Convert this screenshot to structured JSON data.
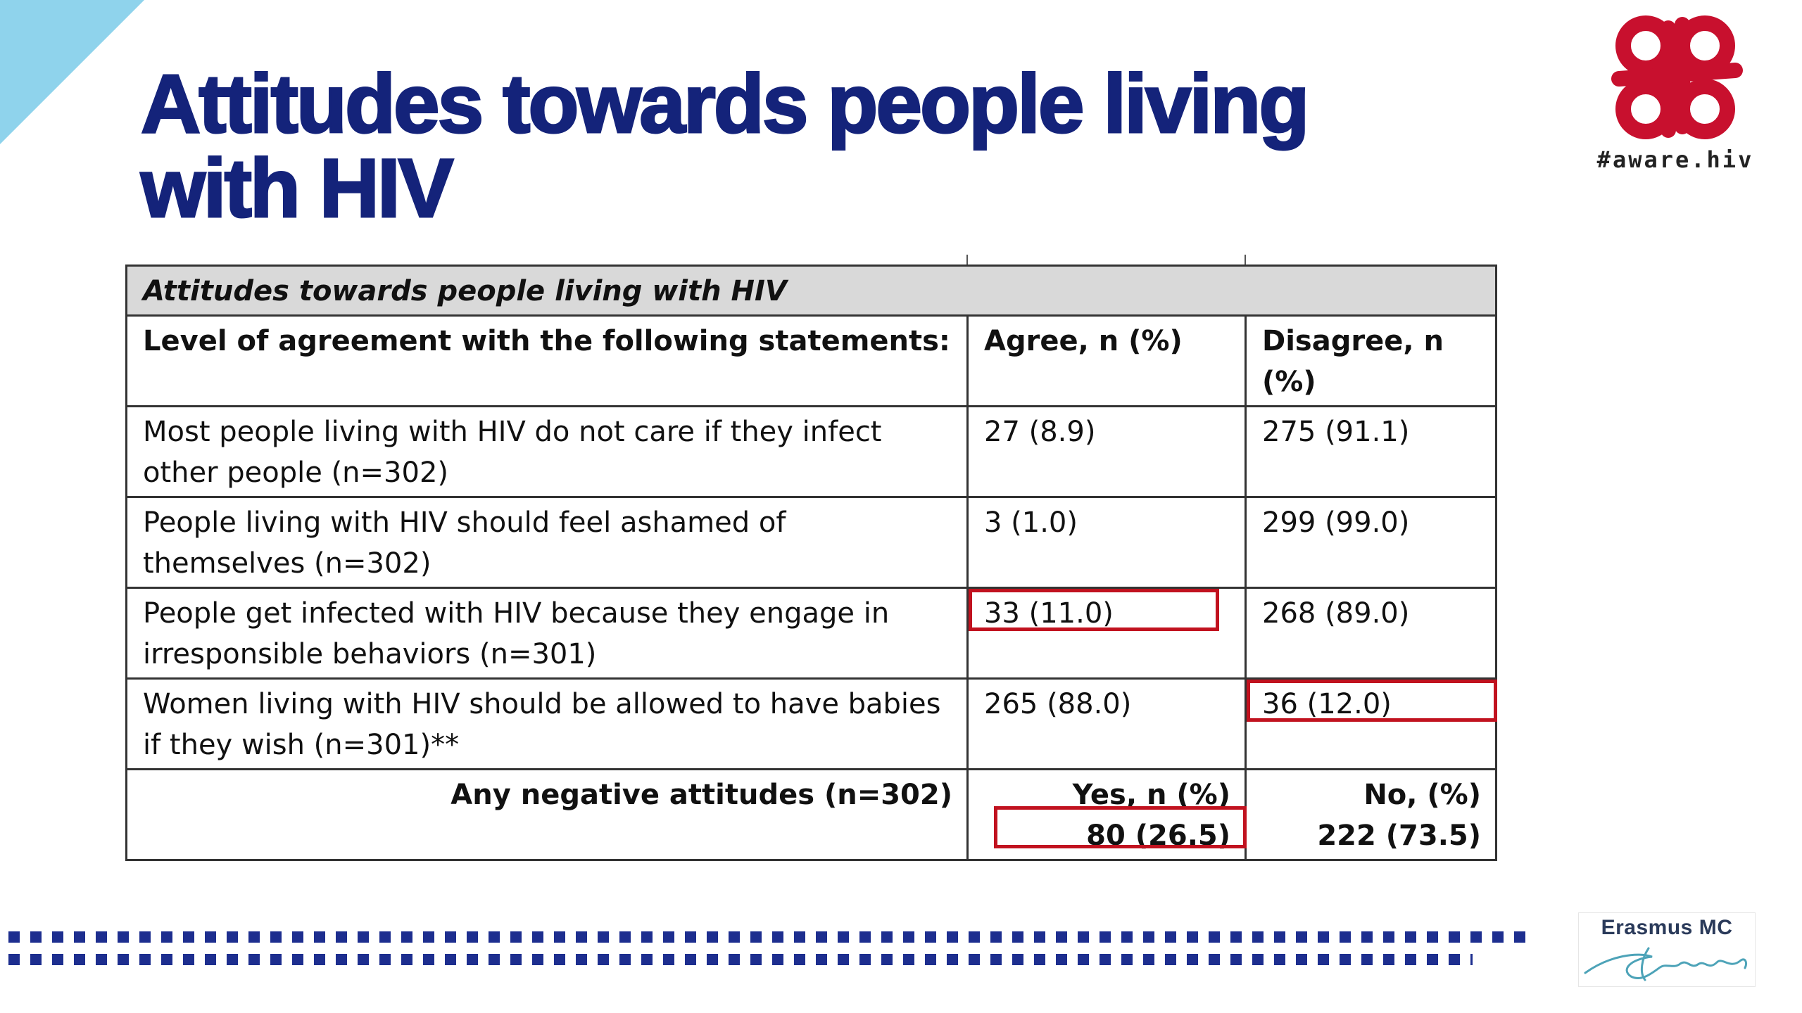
{
  "slide": {
    "title": "Attitudes towards people living with HIV",
    "colors": {
      "title": "#14237a",
      "corner_accent": "#8fd3ec",
      "highlight": "#c1121f",
      "dots": "#1d2e8f"
    }
  },
  "logo": {
    "text": "#aware.hiv",
    "icon": "aware-hiv-logo-icon"
  },
  "table": {
    "section_title": "Attitudes towards people living with HIV",
    "headers": {
      "statement": "Level of agreement with the following statements:",
      "agree": "Agree, n (%)",
      "disagree": "Disagree, n (%)"
    },
    "rows": [
      {
        "statement": "Most people living with HIV do not care if they infect other people (n=302)",
        "agree": "27 (8.9)",
        "disagree": "275 (91.1)"
      },
      {
        "statement": "People living with HIV should feel ashamed of themselves (n=302)",
        "agree": "3 (1.0)",
        "disagree": "299 (99.0)"
      },
      {
        "statement": "People get infected with HIV because they engage in irresponsible behaviors (n=301)",
        "agree": "33 (11.0)",
        "disagree": "268 (89.0)",
        "highlighted": "agree"
      },
      {
        "statement": "Women living with HIV should be allowed to have babies if they wish (n=301)**",
        "agree": "265 (88.0)",
        "disagree": "36 (12.0)",
        "highlighted": "disagree"
      }
    ],
    "summary": {
      "label": "Any negative attitudes (n=302)",
      "yes_header": "Yes, n (%)",
      "yes_value": "80 (26.5)",
      "no_header": "No, (%)",
      "no_value": "222 (73.5)",
      "highlighted": "yes_value"
    }
  },
  "footer": {
    "institution_name": "Erasmus MC",
    "signature_icon": "erasmus-signature-icon"
  }
}
